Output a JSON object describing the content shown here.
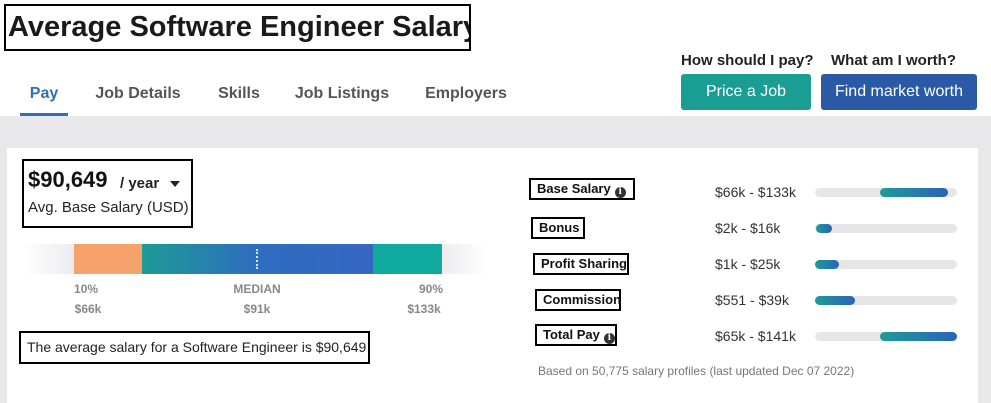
{
  "page": {
    "title": "Average Software Engineer Salary"
  },
  "tabs": [
    {
      "label": "Pay",
      "active": true
    },
    {
      "label": "Job Details",
      "active": false
    },
    {
      "label": "Skills",
      "active": false
    },
    {
      "label": "Job Listings",
      "active": false
    },
    {
      "label": "Employers",
      "active": false
    }
  ],
  "cta": {
    "price_question": "How should I pay?",
    "price_button": "Price a Job",
    "worth_question": "What am I worth?",
    "worth_button": "Find market worth"
  },
  "colors": {
    "accent": "#2f6fb5",
    "teal_button": "#1a9e94",
    "blue_button": "#2a5aa6",
    "low_segment": "#f6a36b",
    "high_segment": "#0fa99d"
  },
  "salary": {
    "amount": "$90,649",
    "period": "/ year",
    "caption": "Avg. Base Salary (USD)",
    "sentence": "The average salary for a Software Engineer is $90,649"
  },
  "percentiles": [
    {
      "pct": "10%",
      "value": "$66k"
    },
    {
      "pct": "MEDIAN",
      "value": "$91k"
    },
    {
      "pct": "90%",
      "value": "$133k"
    }
  ],
  "compensation": [
    {
      "label": "Base Salary",
      "info": true,
      "range": "$66k - $133k",
      "fill_start": 0.46,
      "fill_end": 0.94
    },
    {
      "label": "Bonus",
      "info": false,
      "range": "$2k - $16k",
      "fill_start": 0.01,
      "fill_end": 0.12
    },
    {
      "label": "Profit Sharing",
      "info": false,
      "range": "$1k - $25k",
      "fill_start": 0.0,
      "fill_end": 0.17
    },
    {
      "label": "Commission",
      "info": false,
      "range": "$551 - $39k",
      "fill_start": 0.0,
      "fill_end": 0.28
    },
    {
      "label": "Total Pay",
      "info": true,
      "range": "$65k - $141k",
      "fill_start": 0.46,
      "fill_end": 1.0
    }
  ],
  "footnote": "Based on 50,775 salary profiles (last updated Dec 07 2022)"
}
